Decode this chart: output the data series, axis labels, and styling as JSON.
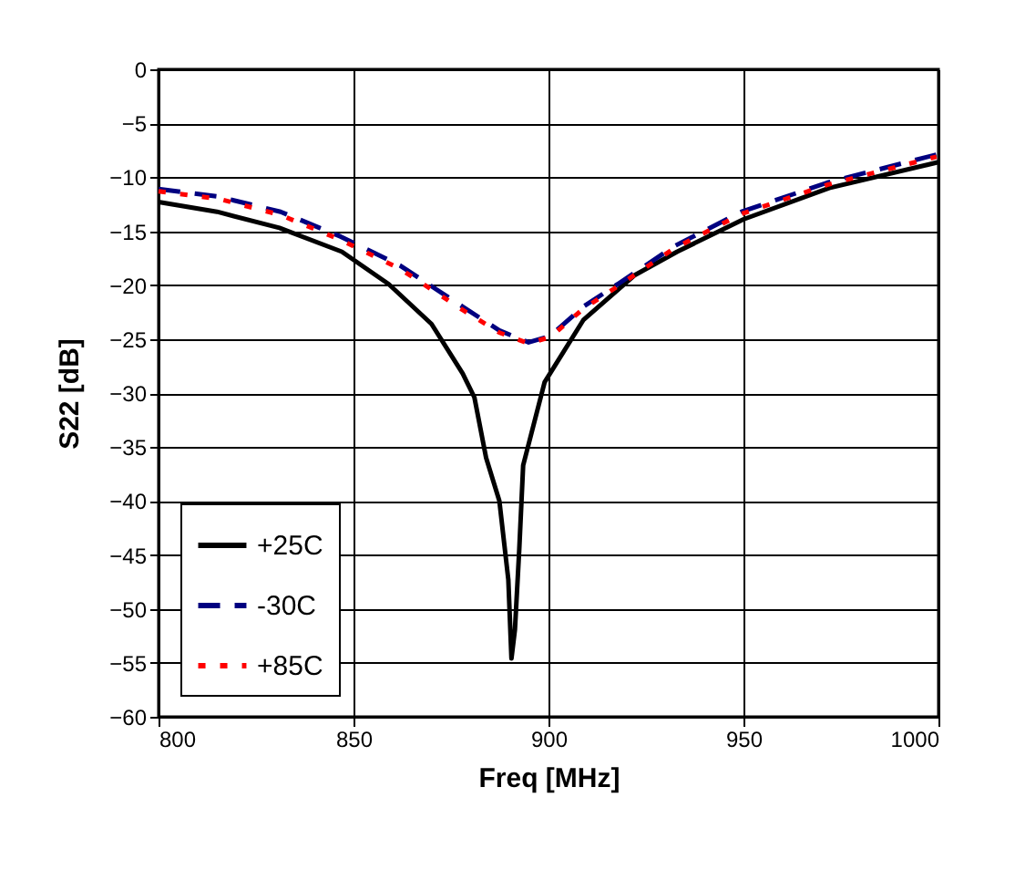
{
  "chart_data": {
    "type": "line",
    "xlabel": "Freq [MHz]",
    "ylabel": "S22 [dB]",
    "xlim": [
      800,
      1000
    ],
    "xticks": [
      800,
      850,
      900,
      950,
      1000
    ],
    "ylim": [
      -60,
      0
    ],
    "yticks": [
      -60,
      -55,
      -50,
      -45,
      -40,
      -35,
      -30,
      -25,
      -20,
      -15,
      -10,
      -5,
      0
    ],
    "grid": true,
    "legend": "bottom left",
    "marker": "none",
    "series": [
      {
        "name": "+25C",
        "color": "#000000",
        "line_style": "solid",
        "x": [
          800,
          815,
          831,
          847,
          859,
          870,
          878,
          881,
          884,
          887.4,
          889.7,
          890.5,
          891.4,
          892.5,
          893.5,
          899,
          909,
          922,
          933,
          950,
          972,
          1000
        ],
        "values": [
          -12.3,
          -13.2,
          -14.7,
          -16.9,
          -19.9,
          -23.6,
          -28.2,
          -30.4,
          -36,
          -40,
          -47.3,
          -54.6,
          -51.9,
          -44.5,
          -36.7,
          -29,
          -23.2,
          -19.1,
          -16.9,
          -13.9,
          -11,
          -8.6
        ]
      },
      {
        "name": "-30C",
        "color": "#000080",
        "line_style": "dashed",
        "x": [
          800,
          815.4,
          831.3,
          846.7,
          862,
          878,
          887.4,
          894.9,
          900.5,
          908.9,
          918.2,
          932.2,
          949.5,
          971.5,
          999.5
        ],
        "values": [
          -11.1,
          -11.8,
          -13.2,
          -15.5,
          -18.2,
          -22,
          -24.2,
          -25.3,
          -24.7,
          -22,
          -19.8,
          -16.4,
          -13.2,
          -10.5,
          -7.9
        ]
      },
      {
        "name": "+85C",
        "color": "#ff0000",
        "line_style": "dotted",
        "x": [
          800,
          815.4,
          831.3,
          846.7,
          862,
          878,
          887.4,
          894.9,
          900.5,
          908.9,
          918.2,
          932.2,
          949.5,
          971.5,
          999.5
        ],
        "values": [
          -11.3,
          -12,
          -13.5,
          -15.8,
          -18.5,
          -22.3,
          -24.4,
          -25.4,
          -24.8,
          -22.2,
          -20,
          -16.6,
          -13.4,
          -10.7,
          -8.1
        ]
      }
    ]
  }
}
